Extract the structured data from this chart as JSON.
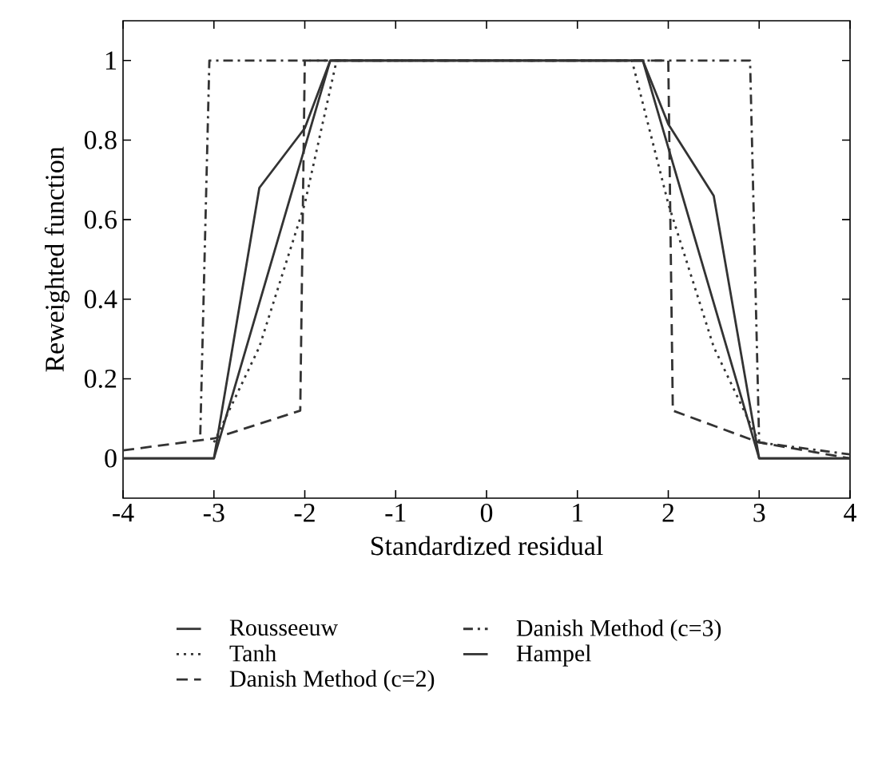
{
  "chart_data": {
    "type": "line",
    "xlabel": "Standardized residual",
    "ylabel": "Reweighted function",
    "xlim": [
      -4,
      4
    ],
    "ylim": [
      -0.1,
      1.1
    ],
    "xticks": [
      -4,
      -3,
      -2,
      -1,
      0,
      1,
      2,
      3,
      4
    ],
    "yticks": [
      0,
      0.2,
      0.4,
      0.6,
      0.8,
      1
    ],
    "grid": false,
    "legend": "bottom",
    "series": [
      {
        "name": "Rousseeuw",
        "color": "#333333",
        "line_style": "solid",
        "x": [
          -4,
          -3,
          -1.72,
          1.72,
          3,
          4
        ],
        "values": [
          0,
          0,
          1,
          1,
          0,
          0
        ]
      },
      {
        "name": "Danish Method (c=3)",
        "color": "#333333",
        "line_style": "dashdot",
        "x": [
          -3.15,
          -3.05,
          2.9,
          3,
          4
        ],
        "values": [
          0.06,
          1,
          1,
          0.04,
          0.01
        ]
      },
      {
        "name": "Tanh",
        "color": "#333333",
        "line_style": "dotted",
        "x": [
          -3,
          -2.5,
          -2,
          -1.65,
          1.6,
          2,
          2.5,
          3
        ],
        "values": [
          0.04,
          0.28,
          0.64,
          1,
          1,
          0.64,
          0.28,
          0.04
        ]
      },
      {
        "name": "Hampel",
        "color": "#333333",
        "line_style": "solid",
        "x": [
          -4,
          -3,
          -2.5,
          -2,
          -1.72,
          1.72,
          2,
          2.5,
          3,
          4
        ],
        "values": [
          0,
          0,
          0.68,
          0.83,
          1,
          1,
          0.84,
          0.66,
          0,
          0
        ]
      },
      {
        "name": "Danish Method (c=2)",
        "color": "#333333",
        "line_style": "dashed",
        "x": [
          -4,
          -3,
          -2.05,
          -2,
          2,
          2.05,
          3,
          4
        ],
        "values": [
          0.02,
          0.05,
          0.12,
          1,
          1,
          0.12,
          0.04,
          0.0
        ]
      }
    ]
  }
}
